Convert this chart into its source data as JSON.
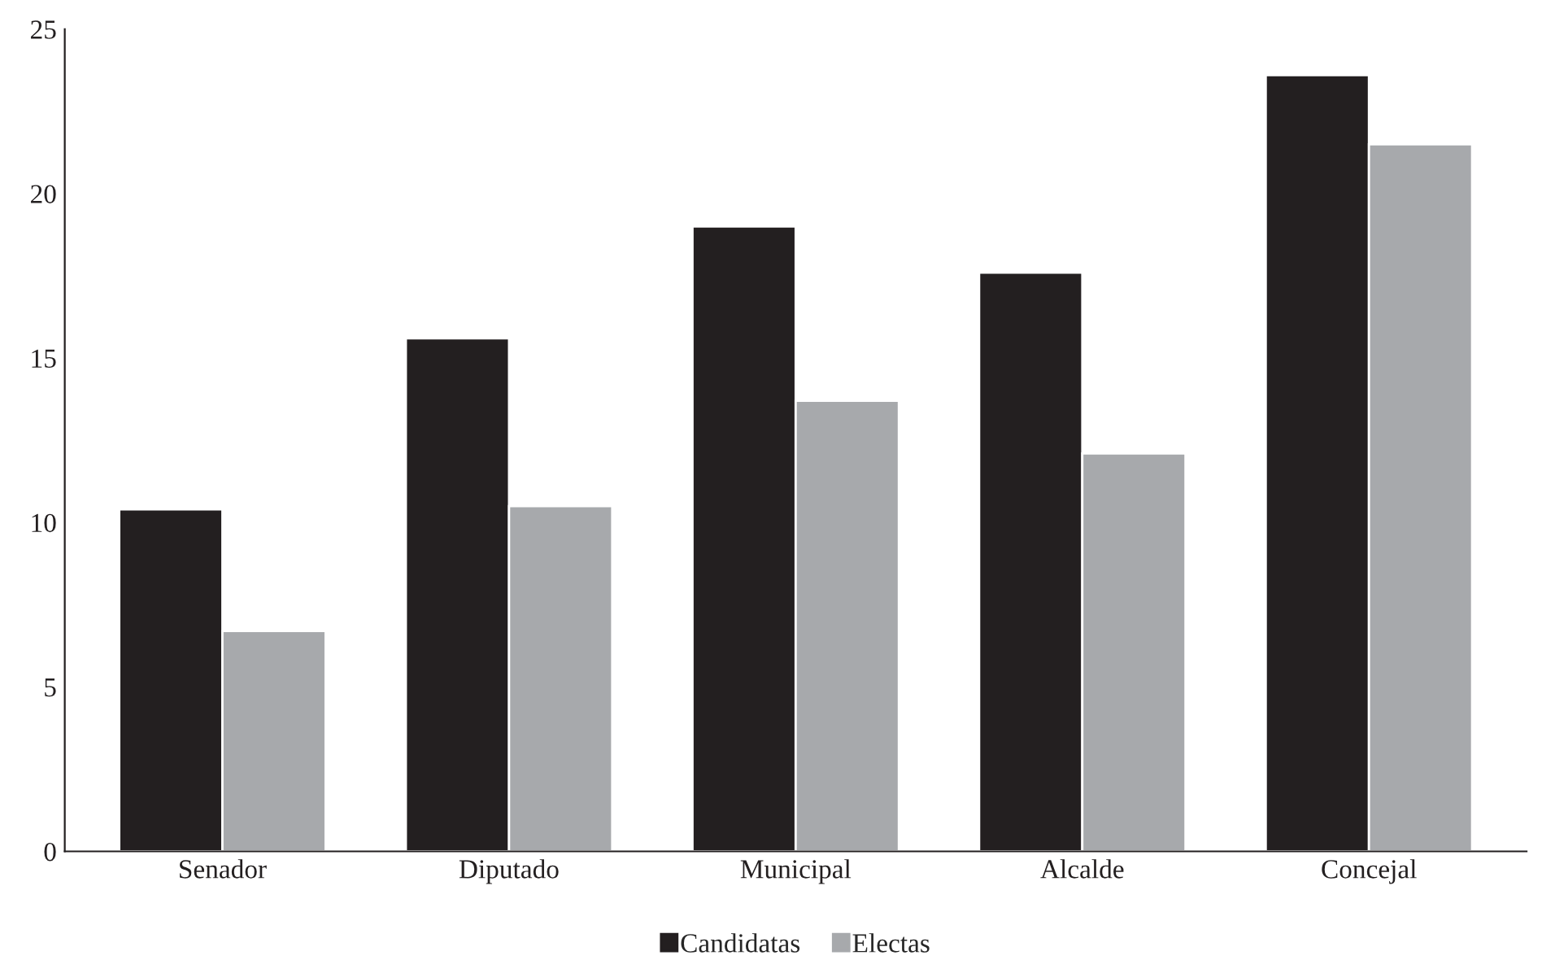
{
  "chart_data": {
    "type": "bar",
    "categories": [
      "Senador",
      "Diputado",
      "Municipal",
      "Alcalde",
      "Concejal"
    ],
    "series": [
      {
        "name": "Candidatas",
        "color": "#231f20",
        "values": [
          10.4,
          15.6,
          19.0,
          17.6,
          23.6
        ]
      },
      {
        "name": "Electas",
        "color": "#a7a9ac",
        "values": [
          6.7,
          10.5,
          13.7,
          12.1,
          21.5
        ]
      }
    ],
    "ylim": [
      0,
      25
    ],
    "yticks": [
      0,
      5,
      10,
      15,
      20,
      25
    ],
    "grid": false,
    "legend": "bottom"
  }
}
